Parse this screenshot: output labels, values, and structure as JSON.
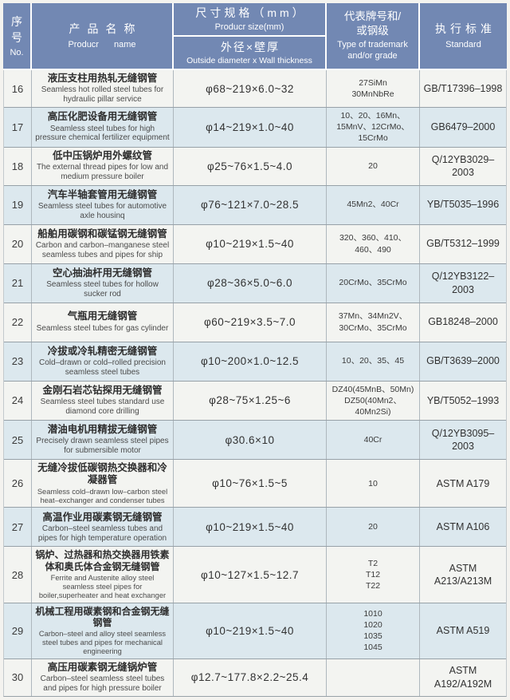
{
  "colors": {
    "header_bg": "#7288b3",
    "row_bg": "#f3f4f1",
    "row_alt_bg": "#dce8ee",
    "grid_line": "#97a1a8",
    "header_text": "#ffffff"
  },
  "header": {
    "no": {
      "zh": "序号",
      "en": "No."
    },
    "name": {
      "zh": "产品名称",
      "en": "Producr name"
    },
    "size": {
      "zh": "尺寸规格（mm）",
      "en": "Producr size(mm)",
      "sub_zh": "外径×壁厚",
      "sub_en": "Outside diameter x Wall thickness"
    },
    "grade": {
      "zh_line1": "代表牌号和/",
      "zh_line2": "或钢级",
      "en_line1": "Type of trademark",
      "en_line2": "and/or grade"
    },
    "standard": {
      "zh": "执行标准",
      "en": "Standard"
    }
  },
  "rows": [
    {
      "no": "16",
      "name_zh": "液压支柱用热轧无缝钢管",
      "name_en": "Seamless hot rolled steel tubes for hydraulic pillar service",
      "size": "φ68~219×6.0~32",
      "grades": [
        "27SiMn",
        "30MnNbRe"
      ],
      "standard": "GB/T17396–1998"
    },
    {
      "no": "17",
      "name_zh": "高压化肥设备用无缝钢管",
      "name_en": "Seamless steel tubes for high pressure chemical fertilizer equipment",
      "size": "φ14~219×1.0~40",
      "grades": [
        "10、20、16Mn、",
        "15MnV、12CrMo、",
        "15CrMo"
      ],
      "standard": "GB6479–2000"
    },
    {
      "no": "18",
      "name_zh": "低中压锅炉用外螺纹管",
      "name_en": "The external thread pipes for low and medium pressure boiler",
      "size": "φ25~76×1.5~4.0",
      "grades": [
        "20"
      ],
      "standard": "Q/12YB3029–2003"
    },
    {
      "no": "19",
      "name_zh": "汽车半轴套管用无缝钢管",
      "name_en": "Seamless steel tubes for automotive axle housinq",
      "size": "φ76~121×7.0~28.5",
      "grades": [
        "45Mn2、40Cr"
      ],
      "standard": "YB/T5035–1996"
    },
    {
      "no": "20",
      "name_zh": "船舶用碳钢和碳锰钢无缝钢管",
      "name_en": "Carbon and carbon–manganese steel seamless tubes and pipes for ship",
      "size": "φ10~219×1.5~40",
      "grades": [
        "320、360、410、",
        "460、490"
      ],
      "standard": "GB/T5312–1999"
    },
    {
      "no": "21",
      "name_zh": "空心抽油杆用无缝钢管",
      "name_en": "Seamless steel tubes for hollow sucker rod",
      "size": "φ28~36×5.0~6.0",
      "grades": [
        "20CrMo、35CrMo"
      ],
      "standard": "Q/12YB3122–2003"
    },
    {
      "no": "22",
      "name_zh": "气瓶用无缝钢管",
      "name_en": "Seamless steel tubes for gas cylinder",
      "size": "φ60~219×3.5~7.0",
      "grades": [
        "37Mn、34Mn2V、",
        "30CrMo、35CrMo"
      ],
      "standard": "GB18248–2000"
    },
    {
      "no": "23",
      "name_zh": "冷拔或冷轧精密无缝钢管",
      "name_en": "Cold–drawn or cold–rolled precision seamless steel tubes",
      "size": "φ10~200×1.0~12.5",
      "grades": [
        "10、20、35、45"
      ],
      "standard": "GB/T3639–2000"
    },
    {
      "no": "24",
      "name_zh": "金刚石岩芯钻探用无缝钢管",
      "name_en": "Seamless steel tubes standard use diamond core drilling",
      "size": "φ28~75×1.25~6",
      "grades": [
        "DZ40(45MnB、50Mn)",
        "DZ50(40Mn2、40Mn2Si)"
      ],
      "standard": "YB/T5052–1993"
    },
    {
      "no": "25",
      "name_zh": "潜油电机用精拔无缝钢管",
      "name_en": "Precisely drawn seamless steel pipes for submersible motor",
      "size": "φ30.6×10",
      "grades": [
        "40Cr"
      ],
      "standard": "Q/12YB3095–2003"
    },
    {
      "no": "26",
      "name_zh": "无缝冷拔低碳钢热交换器和冷凝器管",
      "name_en": "Seamless cold–drawn low–carbon steel heat–exchanger and condenser tubes",
      "size": "φ10~76×1.5~5",
      "grades": [
        "10"
      ],
      "standard": "ASTM A179"
    },
    {
      "no": "27",
      "name_zh": "高温作业用碳素钢无缝钢管",
      "name_en": "Carbon–steel seamless tubes and pipes for high temperature operation",
      "size": "φ10~219×1.5~40",
      "grades": [
        "20"
      ],
      "standard": "ASTM A106"
    },
    {
      "no": "28",
      "name_zh": "锅炉、过热器和热交换器用铁素体和奥氏体合金钢无缝钢管",
      "name_en": "Ferrite and Austenite alloy steel seamless steel pipes for boiler,superheater and heat exchanger",
      "size": "φ10~127×1.5~12.7",
      "grades": [
        "T2",
        "T12",
        "T22"
      ],
      "standard": "ASTM A213/A213M"
    },
    {
      "no": "29",
      "name_zh": "机械工程用碳素钢和合金钢无缝钢管",
      "name_en": "Carbon–steel and alloy steel seamless steel tubes and pipes for mechanical engineering",
      "size": "φ10~219×1.5~40",
      "grades": [
        "1010",
        "1020",
        "1035",
        "1045"
      ],
      "standard": "ASTM A519"
    },
    {
      "no": "30",
      "name_zh": "高压用碳素钢无缝锅炉管",
      "name_en": "Carbon–steel seamless steel tubes and pipes for high pressure boiler",
      "size": "φ12.7~177.8×2.2~25.4",
      "grades": [],
      "standard": "ASTM A192/A192M"
    }
  ]
}
